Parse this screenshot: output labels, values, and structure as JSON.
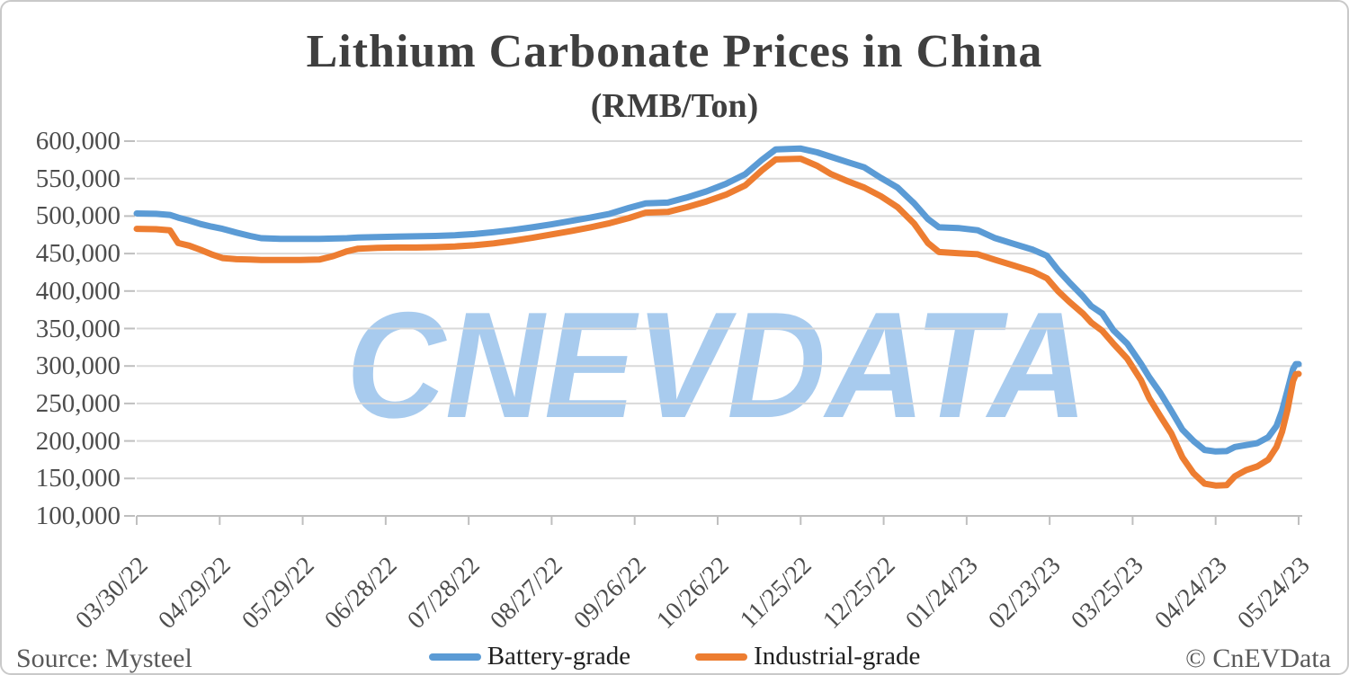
{
  "title": "Lithium Carbonate Prices in China",
  "subtitle": "(RMB/Ton)",
  "watermark": "CNEVDATA",
  "footer": {
    "source": "Source: Mysteel",
    "copyright": "© CnEVData"
  },
  "legend": [
    {
      "label": "Battery-grade",
      "color": "#5B9BD5"
    },
    {
      "label": "Industrial-grade",
      "color": "#ED7D31"
    }
  ],
  "colors": {
    "battery": "#5B9BD5",
    "industrial": "#ED7D31",
    "gridline": "#D9D9D9",
    "axis": "#BFBFBF",
    "watermark": "#A8CBEE",
    "title_text": "#3f3f3f",
    "tick_text": "#4d4d4d",
    "footer_text": "#595959"
  },
  "chart_data": {
    "type": "line",
    "title": "Lithium Carbonate Prices in China",
    "subtitle": "(RMB/Ton)",
    "xlabel": "",
    "ylabel": "RMB/Ton",
    "ylim": [
      100000,
      600000
    ],
    "ytick_step": 50000,
    "ytick_labels": [
      "600,000",
      "550,000",
      "500,000",
      "450,000",
      "400,000",
      "350,000",
      "300,000",
      "250,000",
      "200,000",
      "150,000",
      "100,000"
    ],
    "xtick_labels": [
      "03/30/22",
      "04/29/22",
      "05/29/22",
      "06/28/22",
      "07/28/22",
      "08/27/22",
      "09/26/22",
      "10/26/22",
      "11/25/22",
      "12/25/22",
      "01/24/23",
      "02/23/23",
      "03/25/23",
      "04/24/23",
      "05/24/23"
    ],
    "grid": true,
    "legend_position": "bottom",
    "x_dates": [
      "03/30/22",
      "04/06/22",
      "04/11/22",
      "04/14/22",
      "04/18/22",
      "04/22/22",
      "04/26/22",
      "04/30/22",
      "05/05/22",
      "05/10/22",
      "05/14/22",
      "05/21/22",
      "05/28/22",
      "06/04/22",
      "06/09/22",
      "06/14/22",
      "06/18/22",
      "06/25/22",
      "07/02/22",
      "07/09/22",
      "07/16/22",
      "07/23/22",
      "07/30/22",
      "08/06/22",
      "08/13/22",
      "08/20/22",
      "08/27/22",
      "09/03/22",
      "09/10/22",
      "09/17/22",
      "09/24/22",
      "09/30/22",
      "10/08/22",
      "10/15/22",
      "10/22/22",
      "10/29/22",
      "11/05/22",
      "11/11/22",
      "11/16/22",
      "11/25/22",
      "12/01/22",
      "12/06/22",
      "12/12/22",
      "12/18/22",
      "12/24/22",
      "12/30/22",
      "01/05/23",
      "01/10/23",
      "01/14/23",
      "01/21/23",
      "01/28/23",
      "02/03/23",
      "02/10/23",
      "02/17/23",
      "02/22/23",
      "02/26/23",
      "03/02/23",
      "03/07/23",
      "03/10/23",
      "03/14/23",
      "03/18/23",
      "03/23/23",
      "03/28/23",
      "03/31/23",
      "04/04/23",
      "04/08/23",
      "04/12/23",
      "04/16/23",
      "04/20/23",
      "04/24/23",
      "04/28/23",
      "05/01/23",
      "05/05/23",
      "05/09/23",
      "05/13/23",
      "05/16/23",
      "05/18/23",
      "05/20/23",
      "05/22/23",
      "05/23/23",
      "05/24/23"
    ],
    "series": [
      {
        "name": "Battery-grade",
        "color": "#5B9BD5",
        "values": [
          503500,
          503000,
          501500,
          498000,
          494000,
          489500,
          486000,
          483000,
          478000,
          473500,
          470500,
          469500,
          469500,
          469500,
          470000,
          470500,
          471500,
          472000,
          472500,
          473000,
          473500,
          474500,
          476000,
          478500,
          481500,
          485000,
          489000,
          493500,
          498000,
          503000,
          511000,
          517000,
          518000,
          525000,
          533000,
          543000,
          556000,
          575000,
          589000,
          590000,
          585000,
          579000,
          572000,
          565000,
          551000,
          538000,
          517000,
          496000,
          485000,
          484000,
          481000,
          471000,
          463000,
          455000,
          447000,
          428000,
          412000,
          393000,
          380000,
          370000,
          348000,
          330000,
          303000,
          285000,
          264000,
          240000,
          215000,
          200000,
          188000,
          186000,
          186500,
          192000,
          194500,
          197000,
          205000,
          220000,
          240000,
          268000,
          296000,
          302500,
          302500
        ]
      },
      {
        "name": "Industrial-grade",
        "color": "#ED7D31",
        "values": [
          483000,
          482500,
          481000,
          464000,
          460500,
          455000,
          449000,
          444000,
          442500,
          442000,
          441500,
          441500,
          441500,
          442000,
          446500,
          453000,
          456500,
          457500,
          458000,
          458000,
          458500,
          459500,
          461000,
          463500,
          467000,
          471000,
          475500,
          480000,
          485000,
          490500,
          497500,
          504500,
          505500,
          512000,
          519500,
          528500,
          541000,
          561000,
          575500,
          576500,
          567000,
          556000,
          546500,
          538000,
          526500,
          512000,
          490000,
          464000,
          452000,
          450500,
          449000,
          442000,
          434000,
          426000,
          417000,
          400000,
          386000,
          370000,
          358000,
          347000,
          330000,
          310000,
          281000,
          257000,
          233000,
          210000,
          178000,
          157000,
          143000,
          140500,
          141000,
          153000,
          161000,
          166000,
          175000,
          192000,
          212000,
          242000,
          280000,
          289000,
          289500
        ]
      }
    ]
  }
}
